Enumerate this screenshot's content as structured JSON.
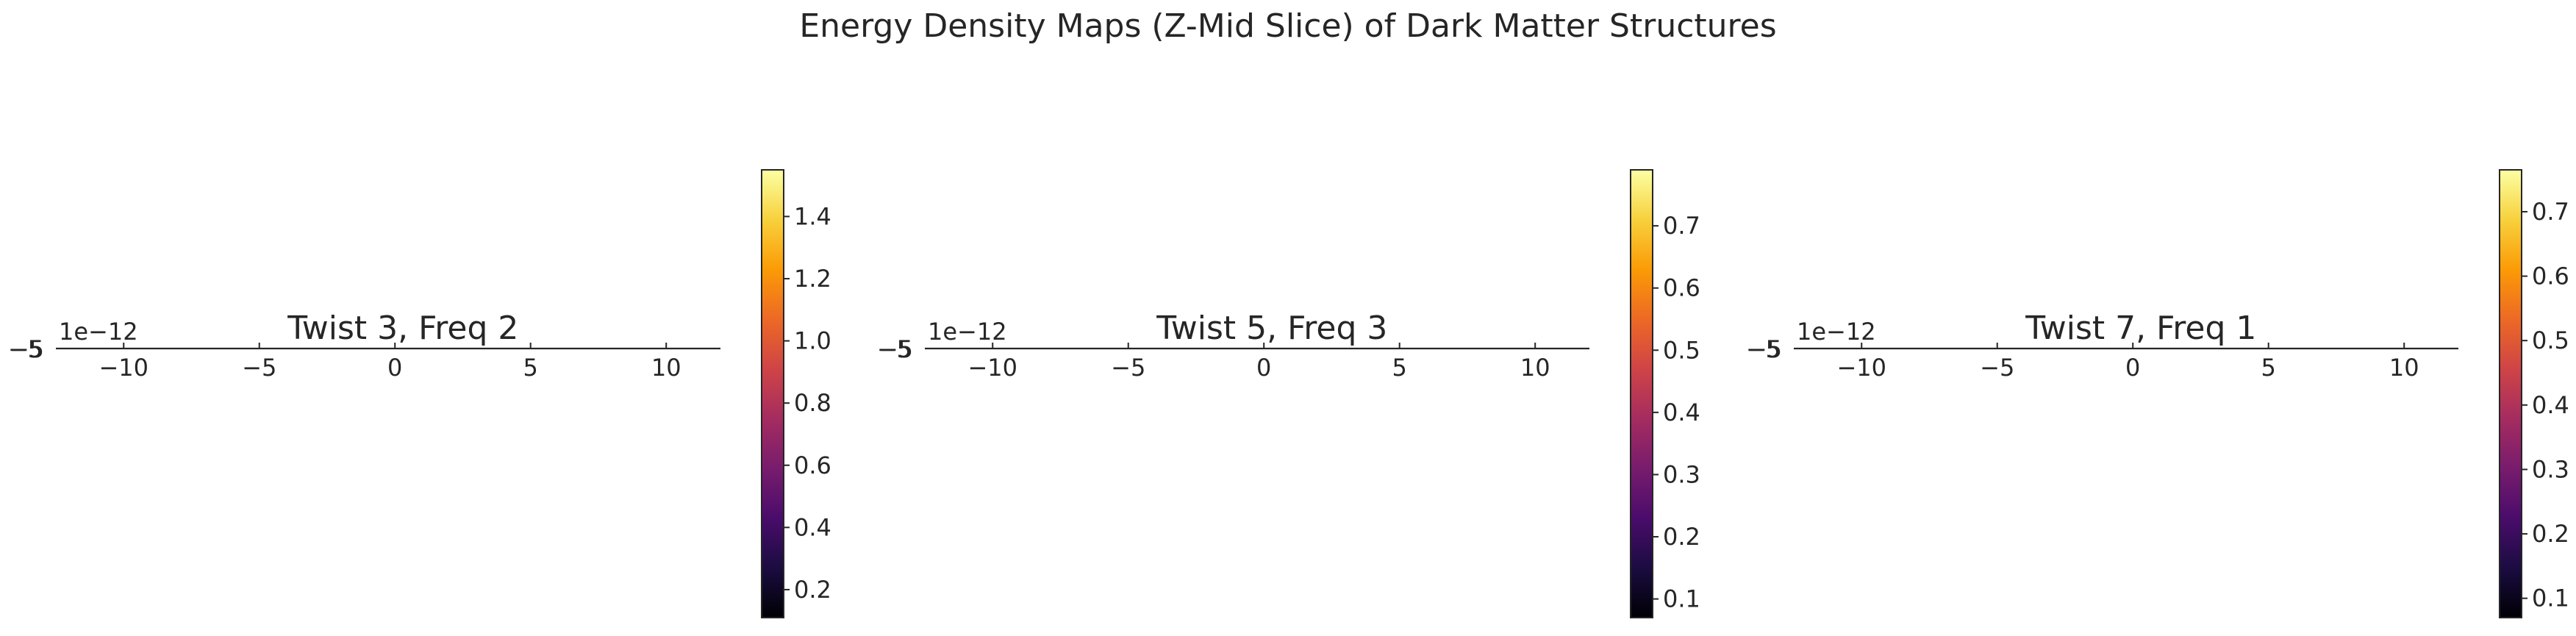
{
  "figure": {
    "title": "Energy Density Maps (Z-Mid Slice) of Dark Matter Structures",
    "colormap": [
      "#000004",
      "#1b0c41",
      "#4a0c6b",
      "#781c6d",
      "#a52c60",
      "#cf4446",
      "#ed6925",
      "#fb9b06",
      "#f7d13d",
      "#fcffa4"
    ]
  },
  "chart_data": [
    {
      "type": "heatmap",
      "title": "Twist 3, Freq 2",
      "xlabel": "",
      "ylabel": "",
      "x_ticks": [
        "−10",
        "−5",
        "0",
        "5",
        "10"
      ],
      "x_tick_values": [
        -10,
        -5,
        0,
        5,
        10
      ],
      "xlim": [
        -12.5,
        12
      ],
      "y_ticks": [
        "−5"
      ],
      "y_offset_text": "1e−12",
      "grid": false,
      "colorbar": {
        "ticks": [
          "0.2",
          "0.4",
          "0.6",
          "0.8",
          "1.0",
          "1.2",
          "1.4"
        ],
        "tick_values": [
          0.2,
          0.4,
          0.6,
          0.8,
          1.0,
          1.2,
          1.4
        ],
        "range": [
          0.11,
          1.55
        ]
      }
    },
    {
      "type": "heatmap",
      "title": "Twist 5, Freq 3",
      "xlabel": "",
      "ylabel": "",
      "x_ticks": [
        "−10",
        "−5",
        "0",
        "5",
        "10"
      ],
      "x_tick_values": [
        -10,
        -5,
        0,
        5,
        10
      ],
      "xlim": [
        -12.5,
        12
      ],
      "y_ticks": [
        "−5"
      ],
      "y_offset_text": "1e−12",
      "grid": false,
      "colorbar": {
        "ticks": [
          "0.1",
          "0.2",
          "0.3",
          "0.4",
          "0.5",
          "0.6",
          "0.7"
        ],
        "tick_values": [
          0.1,
          0.2,
          0.3,
          0.4,
          0.5,
          0.6,
          0.7
        ],
        "range": [
          0.07,
          0.79
        ]
      }
    },
    {
      "type": "heatmap",
      "title": "Twist 7, Freq 1",
      "xlabel": "",
      "ylabel": "",
      "x_ticks": [
        "−10",
        "−5",
        "0",
        "5",
        "10"
      ],
      "x_tick_values": [
        -10,
        -5,
        0,
        5,
        10
      ],
      "xlim": [
        -12.5,
        12
      ],
      "y_ticks": [
        "−5"
      ],
      "y_offset_text": "1e−12",
      "grid": false,
      "colorbar": {
        "ticks": [
          "0.1",
          "0.2",
          "0.3",
          "0.4",
          "0.5",
          "0.6",
          "0.7"
        ],
        "tick_values": [
          0.1,
          0.2,
          0.3,
          0.4,
          0.5,
          0.6,
          0.7
        ],
        "range": [
          0.07,
          0.765
        ]
      }
    }
  ]
}
